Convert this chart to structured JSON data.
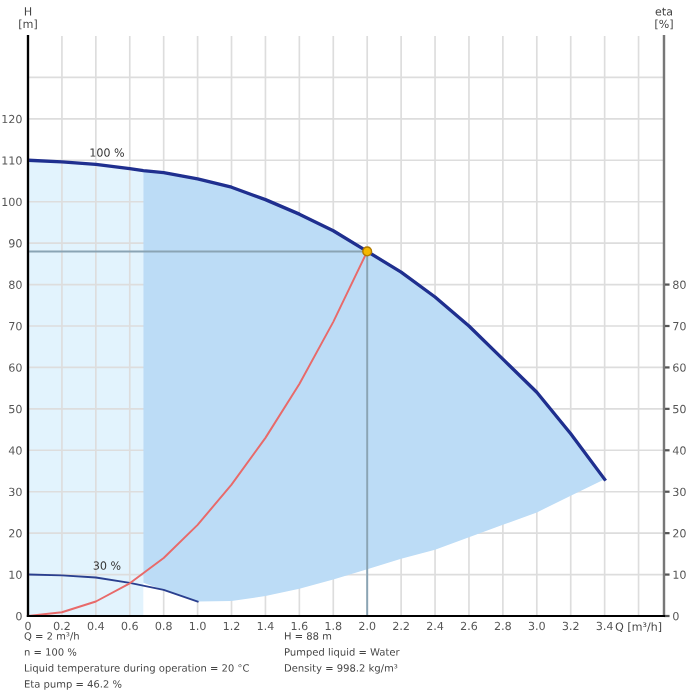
{
  "chart_data": {
    "type": "line",
    "xlabel": "Q [m³/h]",
    "ylabel": "H\n[m]",
    "y2label": "eta\n[%]",
    "xlim": [
      0,
      3.75
    ],
    "ylim": [
      0,
      140
    ],
    "y2lim": [
      0,
      140
    ],
    "xticks": [
      0,
      0.2,
      0.4,
      0.6,
      0.8,
      {
        "value": 1,
        "label": "1.0"
      },
      1.2,
      1.4,
      1.6,
      1.8,
      {
        "value": 2,
        "label": "2.0"
      },
      2.2,
      2.4,
      2.6,
      2.8,
      {
        "value": 3,
        "label": "3.0"
      },
      3.2,
      3.4,
      {
        "value": 3.6,
        "label": null
      }
    ],
    "yticks": [
      0,
      10,
      20,
      30,
      40,
      50,
      60,
      70,
      80,
      90,
      100,
      110,
      120,
      {
        "value": 130,
        "label": null
      }
    ],
    "y2ticks": [
      0,
      10,
      20,
      30,
      40,
      50,
      60,
      70,
      80
    ],
    "grid": true,
    "bands": [
      {
        "axis": "x",
        "from": 0,
        "to": 0.68,
        "color": "#e2f3fd"
      }
    ],
    "series": [
      {
        "name": "100 %",
        "color": "#1f2f8f",
        "x": [
          0,
          0.2,
          0.4,
          0.6,
          0.68,
          0.8,
          1.0,
          1.2,
          1.4,
          1.6,
          1.8,
          2.0,
          2.2,
          2.4,
          2.6,
          2.8,
          3.0,
          3.2,
          3.4
        ],
        "values": [
          110,
          109.6,
          109,
          108,
          107.5,
          107,
          105.5,
          103.5,
          100.5,
          97,
          93,
          88,
          83,
          77,
          70,
          62,
          54,
          44,
          33
        ],
        "lower": [
          null,
          null,
          null,
          null,
          8,
          6.3,
          3.5,
          3.6,
          4.8,
          6.6,
          8.8,
          11.3,
          13.8,
          16,
          19,
          22,
          25,
          29,
          33
        ],
        "upper": [
          null,
          null,
          null,
          null,
          107.5,
          107,
          105.5,
          103.5,
          100.5,
          97,
          93,
          88,
          83,
          77,
          70,
          62,
          54,
          44,
          33
        ]
      },
      {
        "name": "30 %",
        "color": "#2a3f8f",
        "x": [
          0,
          0.2,
          0.4,
          0.6,
          0.8,
          1.0
        ],
        "values": [
          10,
          9.8,
          9.3,
          8,
          6.3,
          3.5
        ]
      },
      {
        "color": "#e86a6a",
        "x": [
          0,
          0.2,
          0.4,
          0.6,
          0.8,
          1.0,
          1.2,
          1.4,
          1.6,
          1.8,
          2.0
        ],
        "values": [
          0,
          0.9,
          3.5,
          7.9,
          14,
          22,
          31.7,
          43,
          56,
          71,
          88
        ]
      },
      {
        "color": "#8aa4b4",
        "x": [
          0,
          2.0,
          2.0
        ],
        "values": [
          88,
          88,
          0
        ]
      },
      {
        "type": "scatter",
        "color": "#f5b800",
        "x": [
          2.0
        ],
        "values": [
          88
        ]
      }
    ],
    "annotations": [
      "Q = 2 m³/h",
      "H = 88 m",
      "n = 100 %",
      "Pumped liquid = Water",
      "Liquid temperature during operation = 20 °C",
      "Density = 998.2 kg/m³",
      "Eta pump = 46.2 %"
    ]
  }
}
